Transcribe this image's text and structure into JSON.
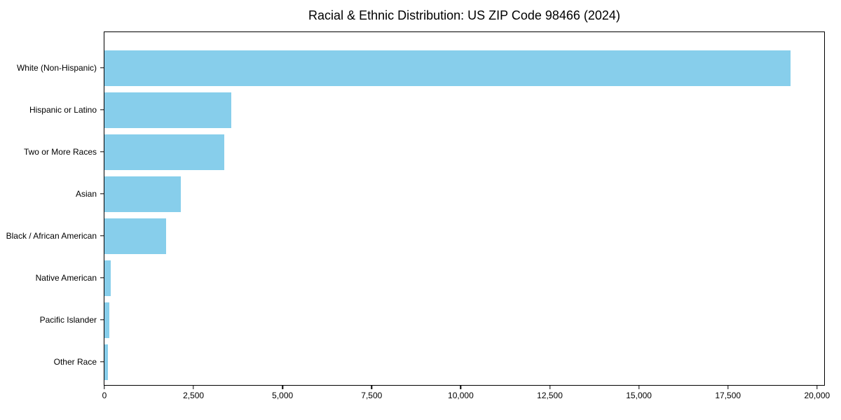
{
  "chart_data": {
    "type": "bar",
    "orientation": "horizontal",
    "title": "Racial & Ethnic Distribution: US ZIP Code 98466 (2024)",
    "categories": [
      "White (Non-Hispanic)",
      "Hispanic or Latino",
      "Two or More Races",
      "Asian",
      "Black / African American",
      "Native American",
      "Pacific Islander",
      "Other Race"
    ],
    "values": [
      19250,
      3560,
      3370,
      2140,
      1730,
      175,
      140,
      95
    ],
    "xlabel": "",
    "ylabel": "",
    "x_ticks": [
      0,
      2500,
      5000,
      7500,
      10000,
      12500,
      15000,
      17500,
      20000
    ],
    "x_tick_labels": [
      "0",
      "2,500",
      "5,000",
      "7,500",
      "10,000",
      "12,500",
      "15,000",
      "17,500",
      "20,000"
    ],
    "xlim": [
      0,
      20200
    ],
    "grid": false,
    "legend": "none",
    "bar_color": "#87CEEB",
    "axis_color": "#000000",
    "background_color": "#ffffff"
  }
}
